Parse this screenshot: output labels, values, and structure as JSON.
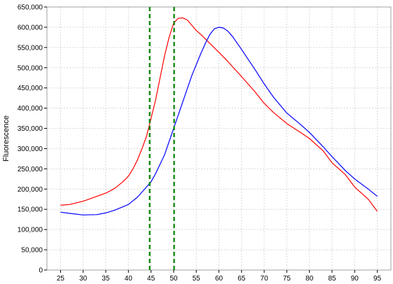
{
  "chart_data": {
    "type": "line",
    "title": "",
    "xlabel": "",
    "ylabel": "Fluorescence",
    "xlim": [
      22,
      98
    ],
    "ylim": [
      0,
      650000
    ],
    "grid": true,
    "x_ticks": [
      25,
      30,
      35,
      40,
      45,
      50,
      55,
      60,
      65,
      70,
      75,
      80,
      85,
      90,
      95
    ],
    "y_ticks": [
      0,
      50000,
      100000,
      150000,
      200000,
      250000,
      300000,
      350000,
      400000,
      450000,
      500000,
      550000,
      600000,
      650000
    ],
    "x_tick_labels": [
      "25",
      "30",
      "35",
      "40",
      "45",
      "50",
      "55",
      "60",
      "65",
      "70",
      "75",
      "80",
      "85",
      "90",
      "95"
    ],
    "y_tick_labels": [
      "0",
      "50,000",
      "100,000",
      "150,000",
      "200,000",
      "250,000",
      "300,000",
      "350,000",
      "400,000",
      "450,000",
      "500,000",
      "550,000",
      "600,000",
      "650,000"
    ],
    "vlines": [
      {
        "x": 44.7,
        "color": "#008000",
        "style": "dashed"
      },
      {
        "x": 50.1,
        "color": "#008000",
        "style": "dashed"
      }
    ],
    "series": [
      {
        "color": "#ff0000",
        "x": [
          25,
          27,
          30,
          33,
          35,
          37,
          39,
          40,
          41,
          42,
          43,
          44,
          45,
          46,
          47,
          48,
          49,
          50,
          51,
          52,
          53,
          54,
          55,
          56,
          58,
          60,
          62,
          65,
          68,
          70,
          72,
          75,
          78,
          80,
          83,
          85,
          88,
          90,
          93,
          95
        ],
        "y": [
          160000,
          162000,
          170000,
          182000,
          190000,
          202000,
          220000,
          232000,
          250000,
          272000,
          300000,
          330000,
          375000,
          420000,
          475000,
          530000,
          575000,
          610000,
          622000,
          623000,
          618000,
          605000,
          592000,
          582000,
          560000,
          538000,
          515000,
          478000,
          440000,
          412000,
          390000,
          362000,
          340000,
          325000,
          295000,
          265000,
          235000,
          205000,
          175000,
          145000
        ]
      },
      {
        "color": "#0000ff",
        "x": [
          25,
          27,
          30,
          33,
          35,
          37,
          40,
          42,
          44,
          45,
          46,
          48,
          50,
          52,
          54,
          56,
          57,
          58,
          59,
          60,
          61,
          62,
          63,
          65,
          68,
          70,
          72,
          75,
          78,
          80,
          83,
          85,
          88,
          90,
          93,
          95
        ],
        "y": [
          143000,
          140000,
          136000,
          137000,
          141000,
          148000,
          162000,
          180000,
          205000,
          218000,
          238000,
          285000,
          350000,
          415000,
          480000,
          535000,
          560000,
          582000,
          596000,
          600000,
          598000,
          590000,
          577000,
          545000,
          495000,
          460000,
          428000,
          388000,
          360000,
          340000,
          305000,
          280000,
          245000,
          225000,
          200000,
          182000
        ]
      }
    ]
  }
}
